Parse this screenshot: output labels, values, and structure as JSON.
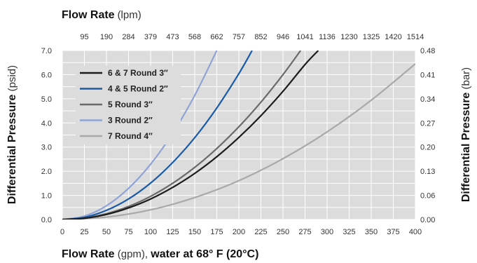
{
  "chart_data": {
    "type": "line",
    "top_axis": {
      "title": "Flow Rate",
      "unit": "(lpm)",
      "ticks": [
        "95",
        "190",
        "284",
        "379",
        "473",
        "568",
        "662",
        "757",
        "852",
        "946",
        "1041",
        "1136",
        "1230",
        "1325",
        "1420",
        "1514"
      ],
      "tick_positions_gpm": [
        25,
        50,
        75,
        100,
        125,
        150,
        175,
        200,
        225,
        250,
        275,
        300,
        325,
        350,
        375,
        400
      ]
    },
    "bottom_axis": {
      "title_bold_1": "Flow Rate",
      "title_light": " (gpm), ",
      "title_bold_2": "water at 68° F (20°C)",
      "xlim": [
        0,
        400
      ],
      "ticks": [
        0,
        25,
        50,
        75,
        100,
        125,
        150,
        175,
        200,
        225,
        250,
        275,
        300,
        325,
        350,
        375,
        400
      ]
    },
    "left_axis": {
      "title_bold": "Differential Pressure",
      "title_light": " (psid)",
      "ylim": [
        0,
        7
      ],
      "ticks": [
        "0.0",
        "1.0",
        "2.0",
        "3.0",
        "4.0",
        "5.0",
        "6.0",
        "7.0"
      ]
    },
    "right_axis": {
      "title_bold": "Differential Pressure",
      "title_light": " (bar)",
      "ticks": [
        "0.00",
        "0.06",
        "0.13",
        "0.20",
        "0.27",
        "0.34",
        "0.41",
        "0.48"
      ]
    },
    "grid": true,
    "legend_position": "top-left",
    "background_color": "#dcdcdc",
    "series": [
      {
        "name": "6 & 7 Round 3″",
        "color": "#1c1c1c",
        "x": [
          0,
          25,
          50,
          75,
          100,
          125,
          150,
          175,
          200,
          225,
          250,
          275,
          290
        ],
        "y": [
          0,
          0.05,
          0.21,
          0.48,
          0.85,
          1.33,
          1.91,
          2.6,
          3.4,
          4.3,
          5.31,
          6.42,
          7.0
        ]
      },
      {
        "name": "4 & 5 Round 2″",
        "color": "#1a5ba6",
        "x": [
          0,
          25,
          50,
          75,
          100,
          125,
          150,
          175,
          200,
          215
        ],
        "y": [
          0,
          0.09,
          0.38,
          0.85,
          1.51,
          2.36,
          3.39,
          4.62,
          6.04,
          7.0
        ]
      },
      {
        "name": "5 Round 3″",
        "color": "#6a6a6a",
        "x": [
          0,
          25,
          50,
          75,
          100,
          125,
          150,
          175,
          200,
          225,
          250,
          270
        ],
        "y": [
          0,
          0.06,
          0.24,
          0.54,
          0.96,
          1.5,
          2.16,
          2.94,
          3.84,
          4.86,
          6.0,
          7.0
        ]
      },
      {
        "name": "3 Round 2″",
        "color": "#8fa3d4",
        "x": [
          0,
          25,
          50,
          75,
          100,
          125,
          150,
          175
        ],
        "y": [
          0,
          0.14,
          0.57,
          1.29,
          2.29,
          3.57,
          5.14,
          7.0
        ]
      },
      {
        "name": "7 Round 4″",
        "color": "#a9a9a9",
        "x": [
          0,
          50,
          100,
          150,
          200,
          250,
          300,
          350,
          400
        ],
        "y": [
          0,
          0.1,
          0.4,
          0.91,
          1.61,
          2.52,
          3.63,
          4.94,
          6.45
        ]
      }
    ]
  }
}
